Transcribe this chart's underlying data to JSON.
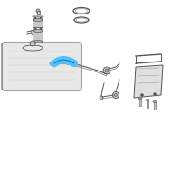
{
  "background_color": "#ffffff",
  "highlight_color": "#4FC3F7",
  "line_color": "#999999",
  "dark_color": "#555555",
  "fig_width": 2.0,
  "fig_height": 2.0,
  "dpi": 100
}
